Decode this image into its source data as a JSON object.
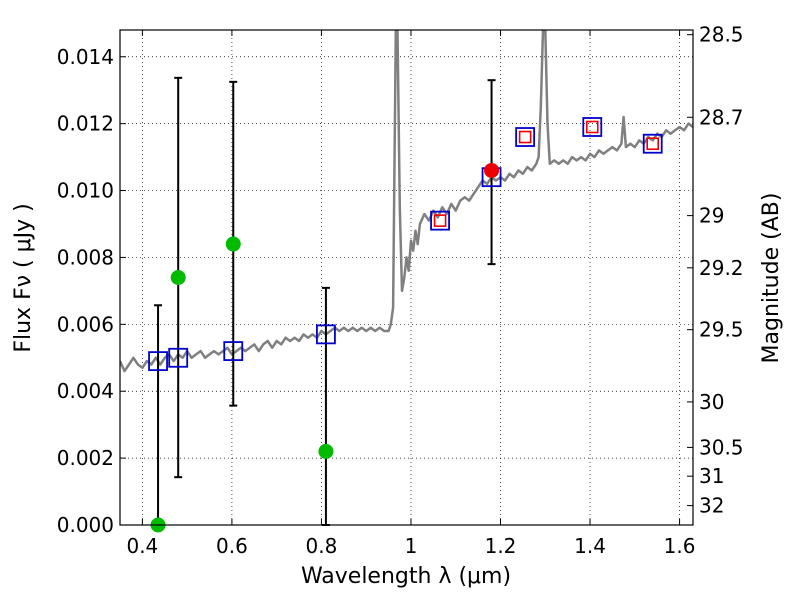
{
  "chart_data": {
    "type": "scatter",
    "xlabel": "Wavelength  λ (μm)",
    "ylabel": "Flux  Fν  ( μJy )",
    "y2label": "Magnitude (AB)",
    "xlim": [
      0.35,
      1.63
    ],
    "ylim": [
      0.0,
      0.0148
    ],
    "grid": true,
    "xticks": [
      0.4,
      0.6,
      0.8,
      1.0,
      1.2,
      1.4,
      1.6
    ],
    "xtick_labels": [
      "0.4",
      "0.6",
      "0.8",
      "1",
      "1.2",
      "1.4",
      "1.6"
    ],
    "yticks": [
      0.0,
      0.002,
      0.004,
      0.006,
      0.008,
      0.01,
      0.012,
      0.014
    ],
    "ytick_labels": [
      "0.000",
      "0.002",
      "0.004",
      "0.006",
      "0.008",
      "0.010",
      "0.012",
      "0.014"
    ],
    "y2ticks": [
      {
        "label": "28.5",
        "flux": 0.01466
      },
      {
        "label": "28.7",
        "flux": 0.01219
      },
      {
        "label": "29",
        "flux": 0.00925
      },
      {
        "label": "29.2",
        "flux": 0.00769
      },
      {
        "label": "29.5",
        "flux": 0.00584
      },
      {
        "label": "30",
        "flux": 0.00368
      },
      {
        "label": "30.5",
        "flux": 0.00232
      },
      {
        "label": "31",
        "flux": 0.00146
      },
      {
        "label": "32",
        "flux": 0.00058
      }
    ],
    "series": [
      {
        "name": "model-spectrum",
        "kind": "line",
        "color": "#808080",
        "points": [
          [
            0.35,
            0.0049
          ],
          [
            0.36,
            0.0046
          ],
          [
            0.37,
            0.0048
          ],
          [
            0.38,
            0.005
          ],
          [
            0.39,
            0.0048
          ],
          [
            0.4,
            0.0047
          ],
          [
            0.41,
            0.0049
          ],
          [
            0.42,
            0.0048
          ],
          [
            0.43,
            0.005
          ],
          [
            0.44,
            0.0048
          ],
          [
            0.45,
            0.005
          ],
          [
            0.46,
            0.0051
          ],
          [
            0.47,
            0.0049
          ],
          [
            0.48,
            0.0051
          ],
          [
            0.49,
            0.005
          ],
          [
            0.5,
            0.0052
          ],
          [
            0.51,
            0.005
          ],
          [
            0.52,
            0.0051
          ],
          [
            0.53,
            0.0052
          ],
          [
            0.54,
            0.005
          ],
          [
            0.55,
            0.0051
          ],
          [
            0.56,
            0.0052
          ],
          [
            0.57,
            0.0051
          ],
          [
            0.58,
            0.0052
          ],
          [
            0.59,
            0.0053
          ],
          [
            0.6,
            0.0051
          ],
          [
            0.61,
            0.0052
          ],
          [
            0.62,
            0.0053
          ],
          [
            0.63,
            0.0052
          ],
          [
            0.64,
            0.0053
          ],
          [
            0.65,
            0.0054
          ],
          [
            0.66,
            0.0052
          ],
          [
            0.67,
            0.0054
          ],
          [
            0.68,
            0.0055
          ],
          [
            0.69,
            0.0053
          ],
          [
            0.7,
            0.0055
          ],
          [
            0.71,
            0.0054
          ],
          [
            0.72,
            0.0056
          ],
          [
            0.73,
            0.0055
          ],
          [
            0.74,
            0.0056
          ],
          [
            0.75,
            0.0055
          ],
          [
            0.76,
            0.0057
          ],
          [
            0.77,
            0.0056
          ],
          [
            0.78,
            0.0057
          ],
          [
            0.79,
            0.0056
          ],
          [
            0.8,
            0.0058
          ],
          [
            0.81,
            0.0057
          ],
          [
            0.82,
            0.0058
          ],
          [
            0.83,
            0.0059
          ],
          [
            0.84,
            0.0058
          ],
          [
            0.85,
            0.0059
          ],
          [
            0.86,
            0.0058
          ],
          [
            0.87,
            0.0059
          ],
          [
            0.88,
            0.0058
          ],
          [
            0.89,
            0.0059
          ],
          [
            0.9,
            0.0058
          ],
          [
            0.91,
            0.0059
          ],
          [
            0.92,
            0.0058
          ],
          [
            0.93,
            0.0059
          ],
          [
            0.94,
            0.0058
          ],
          [
            0.95,
            0.0058
          ],
          [
            0.955,
            0.006
          ],
          [
            0.96,
            0.0065
          ],
          [
            0.963,
            0.0105
          ],
          [
            0.966,
            0.0148
          ],
          [
            0.97,
            0.0148
          ],
          [
            0.975,
            0.0095
          ],
          [
            0.98,
            0.007
          ],
          [
            0.985,
            0.0074
          ],
          [
            0.99,
            0.008
          ],
          [
            0.995,
            0.0076
          ],
          [
            1.0,
            0.0085
          ],
          [
            1.005,
            0.0082
          ],
          [
            1.01,
            0.0088
          ],
          [
            1.015,
            0.0084
          ],
          [
            1.02,
            0.009
          ],
          [
            1.03,
            0.0093
          ],
          [
            1.04,
            0.0091
          ],
          [
            1.05,
            0.0094
          ],
          [
            1.06,
            0.0092
          ],
          [
            1.07,
            0.0095
          ],
          [
            1.08,
            0.0093
          ],
          [
            1.09,
            0.0096
          ],
          [
            1.1,
            0.0094
          ],
          [
            1.11,
            0.0097
          ],
          [
            1.12,
            0.0098
          ],
          [
            1.13,
            0.0097
          ],
          [
            1.14,
            0.0099
          ],
          [
            1.15,
            0.0101
          ],
          [
            1.16,
            0.0103
          ],
          [
            1.17,
            0.0102
          ],
          [
            1.18,
            0.0104
          ],
          [
            1.19,
            0.0103
          ],
          [
            1.2,
            0.0104
          ],
          [
            1.21,
            0.0103
          ],
          [
            1.22,
            0.0105
          ],
          [
            1.23,
            0.0104
          ],
          [
            1.24,
            0.0106
          ],
          [
            1.25,
            0.0105
          ],
          [
            1.26,
            0.0107
          ],
          [
            1.27,
            0.0106
          ],
          [
            1.28,
            0.0108
          ],
          [
            1.285,
            0.011
          ],
          [
            1.29,
            0.0125
          ],
          [
            1.295,
            0.0148
          ],
          [
            1.3,
            0.0148
          ],
          [
            1.305,
            0.012
          ],
          [
            1.31,
            0.0108
          ],
          [
            1.32,
            0.0109
          ],
          [
            1.33,
            0.0108
          ],
          [
            1.34,
            0.0109
          ],
          [
            1.35,
            0.0108
          ],
          [
            1.36,
            0.011
          ],
          [
            1.37,
            0.0109
          ],
          [
            1.38,
            0.011
          ],
          [
            1.39,
            0.0109
          ],
          [
            1.4,
            0.0111
          ],
          [
            1.41,
            0.011
          ],
          [
            1.42,
            0.0112
          ],
          [
            1.43,
            0.0111
          ],
          [
            1.44,
            0.0112
          ],
          [
            1.45,
            0.0113
          ],
          [
            1.46,
            0.0112
          ],
          [
            1.47,
            0.0114
          ],
          [
            1.475,
            0.0122
          ],
          [
            1.48,
            0.0113
          ],
          [
            1.49,
            0.0114
          ],
          [
            1.5,
            0.0113
          ],
          [
            1.51,
            0.0115
          ],
          [
            1.52,
            0.0114
          ],
          [
            1.53,
            0.0116
          ],
          [
            1.54,
            0.0115
          ],
          [
            1.55,
            0.0117
          ],
          [
            1.56,
            0.0116
          ],
          [
            1.57,
            0.0118
          ],
          [
            1.58,
            0.0117
          ],
          [
            1.59,
            0.0118
          ],
          [
            1.6,
            0.0119
          ],
          [
            1.61,
            0.0118
          ],
          [
            1.62,
            0.012
          ],
          [
            1.63,
            0.0119
          ]
        ]
      },
      {
        "name": "model-photometry",
        "kind": "open-square",
        "color": "#0000cc",
        "points": [
          [
            0.435,
            0.0049
          ],
          [
            0.48,
            0.005
          ],
          [
            0.603,
            0.0052
          ],
          [
            0.81,
            0.0057
          ],
          [
            1.065,
            0.0091
          ],
          [
            1.18,
            0.0104
          ],
          [
            1.255,
            0.0116
          ],
          [
            1.405,
            0.0119
          ],
          [
            1.54,
            0.0114
          ]
        ]
      },
      {
        "name": "observed-upper-limits",
        "kind": "errorbar",
        "color": "#00bb00",
        "points": [
          {
            "x": 0.435,
            "y": 0.0,
            "lo": 0.0,
            "hi": 0.00657
          },
          {
            "x": 0.48,
            "y": 0.0074,
            "lo": 0.00143,
            "hi": 0.01337
          },
          {
            "x": 0.603,
            "y": 0.0084,
            "lo": 0.00357,
            "hi": 0.01325
          },
          {
            "x": 0.81,
            "y": 0.0022,
            "lo": 0.0,
            "hi": 0.00709
          }
        ]
      },
      {
        "name": "observed-detections",
        "kind": "errorbar",
        "color": "#ee0000",
        "points": [
          {
            "x": 1.065,
            "y": 0.0091,
            "lo": 0.0091,
            "hi": 0.0091,
            "marker": "square"
          },
          {
            "x": 1.18,
            "y": 0.0106,
            "lo": 0.0078,
            "hi": 0.0133,
            "marker": "circle"
          },
          {
            "x": 1.255,
            "y": 0.0116,
            "lo": 0.0116,
            "hi": 0.0116,
            "marker": "square"
          },
          {
            "x": 1.405,
            "y": 0.0119,
            "lo": 0.0119,
            "hi": 0.0119,
            "marker": "square"
          },
          {
            "x": 1.54,
            "y": 0.0114,
            "lo": 0.0114,
            "hi": 0.0114,
            "marker": "square"
          }
        ]
      }
    ]
  }
}
